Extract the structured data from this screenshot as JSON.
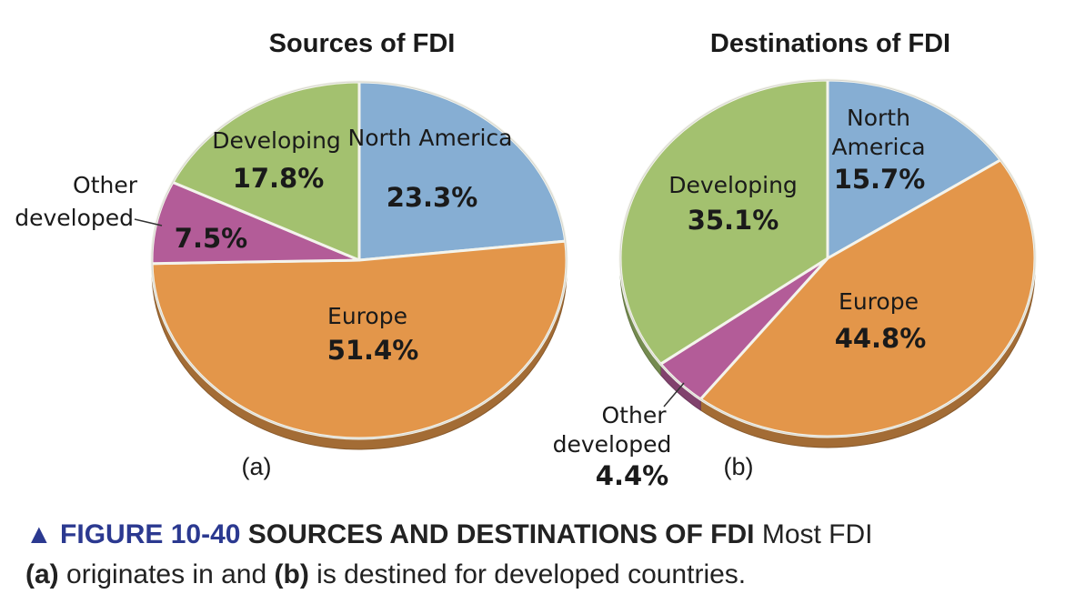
{
  "chart_data": [
    {
      "type": "pie",
      "title": "Sources of FDI",
      "panel": "(a)",
      "slices": [
        {
          "label": "North America",
          "value": 23.3,
          "value_label": "23.3%",
          "color": "#86aed3"
        },
        {
          "label": "Europe",
          "value": 51.4,
          "value_label": "51.4%",
          "color": "#e3964a"
        },
        {
          "label": "Other developed",
          "value": 7.5,
          "value_label": "7.5%",
          "color": "#b35c98"
        },
        {
          "label": "Developing",
          "value": 17.8,
          "value_label": "17.8%",
          "color": "#a3c16f"
        }
      ]
    },
    {
      "type": "pie",
      "title": "Destinations of FDI",
      "panel": "(b)",
      "slices": [
        {
          "label": "North America",
          "value": 15.7,
          "value_label": "15.7%",
          "color": "#86aed3"
        },
        {
          "label": "Europe",
          "value": 44.8,
          "value_label": "44.8%",
          "color": "#e3964a"
        },
        {
          "label": "Other developed",
          "value": 4.4,
          "value_label": "4.4%",
          "color": "#b35c98"
        },
        {
          "label": "Developing",
          "value": 35.1,
          "value_label": "35.1%",
          "color": "#a3c16f"
        }
      ]
    }
  ],
  "caption": {
    "marker": "▲",
    "figure_number": "FIGURE 10-40",
    "heading": "SOURCES AND DESTINATIONS OF FDI",
    "text_1": "Most FDI",
    "part_a": "(a)",
    "text_2": "originates in and",
    "part_b": "(b)",
    "text_3": "is destined for developed countries."
  },
  "colors": {
    "north_america": "#86aed3",
    "europe": "#e3964a",
    "other_developed": "#b35c98",
    "developing": "#a3c16f",
    "caption_accent": "#2b3990"
  }
}
